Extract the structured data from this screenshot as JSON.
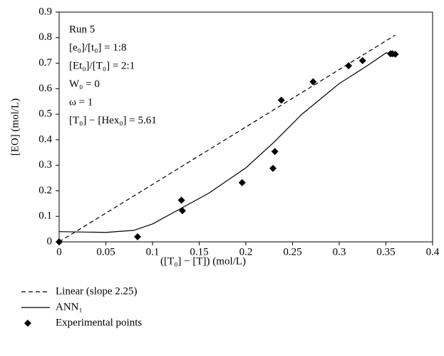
{
  "chart_data": {
    "type": "line",
    "xlabel": "([T₀] − [T]) (mol/L)",
    "ylabel": "[EO] (mol/L)",
    "annotations": [
      "Run 5",
      "[e₀]/[t₀] = 1:8",
      "[Et₀]/[T₀] = 2:1",
      "W₀ = 0",
      "ω = 1",
      "[T₀] − [Hex₀] = 5.61"
    ],
    "xlim": [
      0,
      0.4
    ],
    "xticks": [
      0,
      0.05,
      0.1,
      0.15,
      0.2,
      0.25,
      0.3,
      0.35,
      0.4
    ],
    "ylim": [
      0,
      0.9
    ],
    "yticks": [
      0,
      0.1,
      0.2,
      0.3,
      0.4,
      0.5,
      0.6,
      0.7,
      0.8,
      0.9
    ],
    "legend": "bottom-left",
    "series": [
      {
        "name": "Linear (slope 2.25)",
        "type": "line",
        "dashed": true,
        "color": "#000000",
        "x": [
          0,
          0.36
        ],
        "values": [
          0,
          0.81
        ]
      },
      {
        "name": "ANN₁",
        "type": "line",
        "dashed": false,
        "color": "#000000",
        "x": [
          0,
          0.05,
          0.08,
          0.1,
          0.13,
          0.16,
          0.2,
          0.23,
          0.26,
          0.3,
          0.33,
          0.35,
          0.36
        ],
        "values": [
          0.04,
          0.037,
          0.045,
          0.07,
          0.13,
          0.19,
          0.29,
          0.39,
          0.5,
          0.62,
          0.69,
          0.74,
          0.74
        ]
      },
      {
        "name": "Experimental points",
        "type": "scatter",
        "marker": "diamond",
        "color": "#000000",
        "x": [
          0,
          0.084,
          0.131,
          0.132,
          0.196,
          0.229,
          0.231,
          0.238,
          0.272,
          0.31,
          0.325,
          0.355,
          0.357,
          0.36
        ],
        "values": [
          0,
          0.02,
          0.163,
          0.122,
          0.232,
          0.288,
          0.354,
          0.555,
          0.627,
          0.69,
          0.71,
          0.737,
          0.737,
          0.735
        ]
      }
    ]
  }
}
